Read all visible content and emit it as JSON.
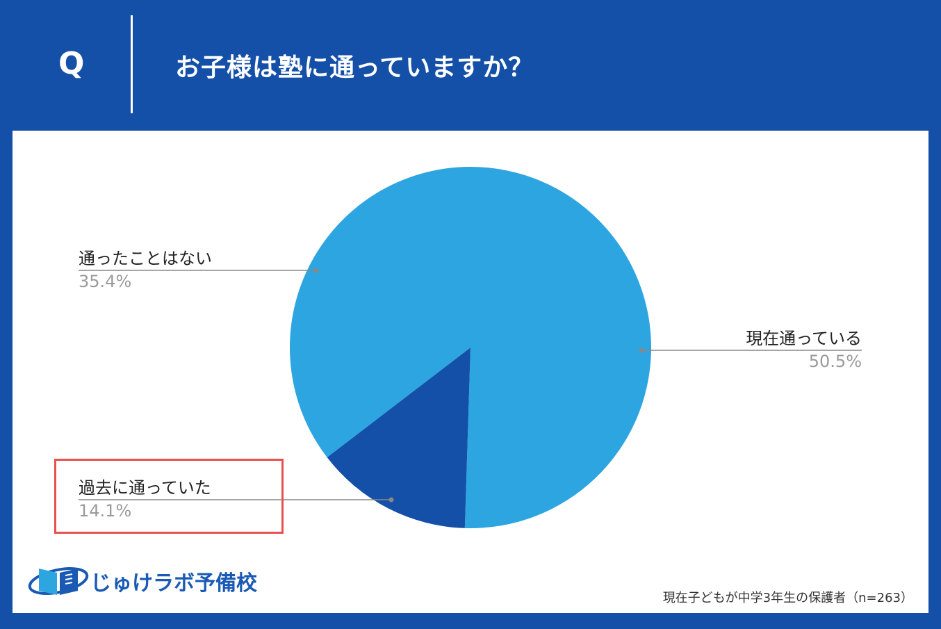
{
  "header": {
    "q_letter": "Q",
    "question": "お子様は塾に通っていますか？"
  },
  "chart_data": {
    "type": "pie",
    "title": "お子様は塾に通っていますか？",
    "slices": [
      {
        "label": "現在通っている",
        "value": 50.5,
        "pct_text": "50.5%",
        "color": "#2DA5E0"
      },
      {
        "label": "過去に通っていた",
        "value": 14.1,
        "pct_text": "14.1%",
        "color": "#1450A8"
      },
      {
        "label": "通ったことはない",
        "value": 35.4,
        "pct_text": "35.4%",
        "color": "#2DA5E0"
      }
    ],
    "highlighted": "過去に通っていた"
  },
  "footer": {
    "logo_text": "じゅけラボ予備校",
    "source": "現在子どもが中学3年生の保護者（n=263）"
  },
  "colors": {
    "background": "#1550A8",
    "highlight_border": "#E8514E"
  }
}
